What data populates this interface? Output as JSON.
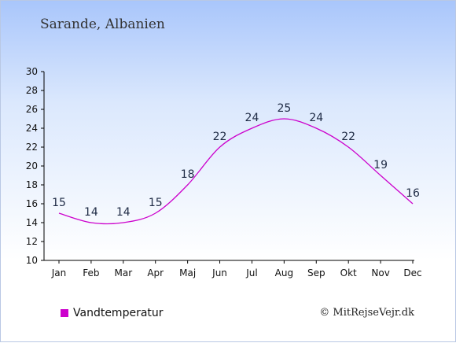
{
  "title": "Sarande, Albanien",
  "legend_label": "Vandtemperatur",
  "credit": "© MitRejseVejr.dk",
  "colors": {
    "series": "#cc00cc",
    "axis": "#000000"
  },
  "chart_data": {
    "type": "line",
    "categories": [
      "Jan",
      "Feb",
      "Mar",
      "Apr",
      "Maj",
      "Jun",
      "Jul",
      "Aug",
      "Sep",
      "Okt",
      "Nov",
      "Dec"
    ],
    "series": [
      {
        "name": "Vandtemperatur",
        "values": [
          15,
          14,
          14,
          15,
          18,
          22,
          24,
          25,
          24,
          22,
          19,
          16
        ]
      }
    ],
    "ylim": [
      10,
      30
    ],
    "yticks": [
      10,
      12,
      14,
      16,
      18,
      20,
      22,
      24,
      26,
      28,
      30
    ],
    "grid": false,
    "legend": "bottom-left"
  }
}
